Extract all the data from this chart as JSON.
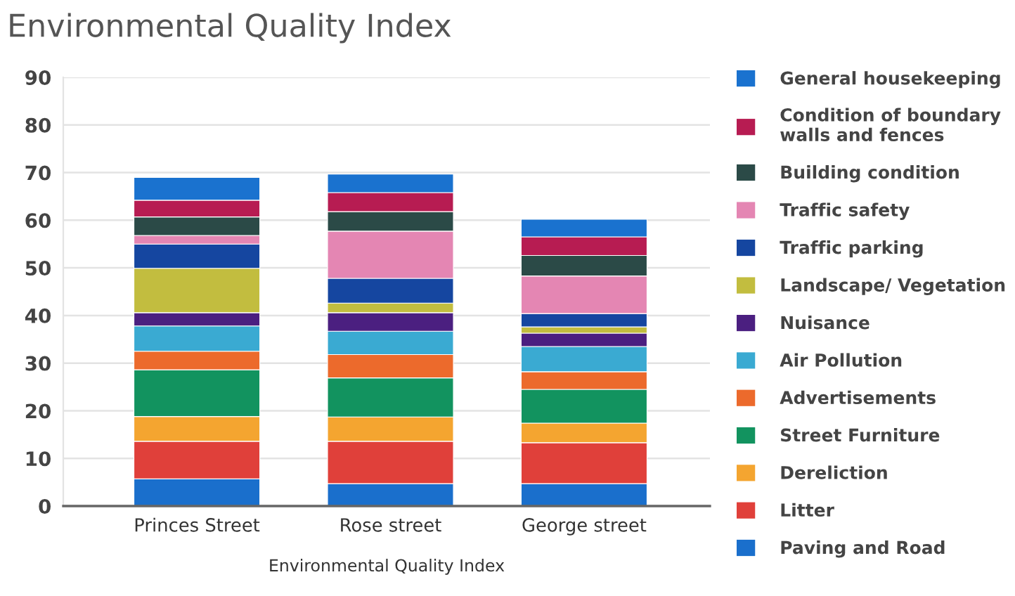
{
  "chart_data": {
    "type": "bar",
    "title": "Environmental Quality Index",
    "xlabel": "Environmental Quality Index",
    "categories": [
      "Princes Street",
      "Rose street",
      "George street"
    ],
    "stacked": true,
    "series": [
      {
        "name": "Paving and Road",
        "color": "#1a6fcc",
        "values": [
          5.7,
          4.7,
          4.7
        ]
      },
      {
        "name": "Litter",
        "color": "#e0403a",
        "values": [
          7.9,
          8.9,
          8.6
        ]
      },
      {
        "name": "Dereliction",
        "color": "#f4a530",
        "values": [
          5.2,
          5.1,
          4.1
        ]
      },
      {
        "name": "Street Furniture",
        "color": "#12935f",
        "values": [
          9.8,
          8.2,
          7.1
        ]
      },
      {
        "name": "Advertisements",
        "color": "#ec6a2c",
        "values": [
          3.9,
          4.9,
          3.7
        ]
      },
      {
        "name": "Air Pollution",
        "color": "#3aaad2",
        "values": [
          5.3,
          4.9,
          5.3
        ]
      },
      {
        "name": "Nuisance",
        "color": "#4b1f80",
        "values": [
          2.8,
          3.9,
          2.8
        ]
      },
      {
        "name": "Landscape/ Vegetation",
        "color": "#c2bd3f",
        "values": [
          9.3,
          2.0,
          1.3
        ]
      },
      {
        "name": "Traffic parking",
        "color": "#1546a0",
        "values": [
          5.1,
          5.2,
          2.8
        ]
      },
      {
        "name": "Traffic safety",
        "color": "#e486b3",
        "values": [
          1.8,
          9.9,
          7.9
        ]
      },
      {
        "name": "Building condition",
        "color": "#2b4a47",
        "values": [
          3.9,
          4.1,
          4.3
        ]
      },
      {
        "name": "Condition of boundary walls and fences",
        "color": "#b71c52",
        "values": [
          3.5,
          4.0,
          3.9
        ]
      },
      {
        "name": "General housekeeping",
        "color": "#1a72cf",
        "values": [
          4.8,
          3.9,
          3.7
        ]
      }
    ],
    "ylim": [
      0,
      90
    ],
    "yticks": [
      0,
      10,
      20,
      30,
      40,
      50,
      60,
      70,
      80,
      90
    ],
    "grid": "y",
    "legend": "right"
  }
}
